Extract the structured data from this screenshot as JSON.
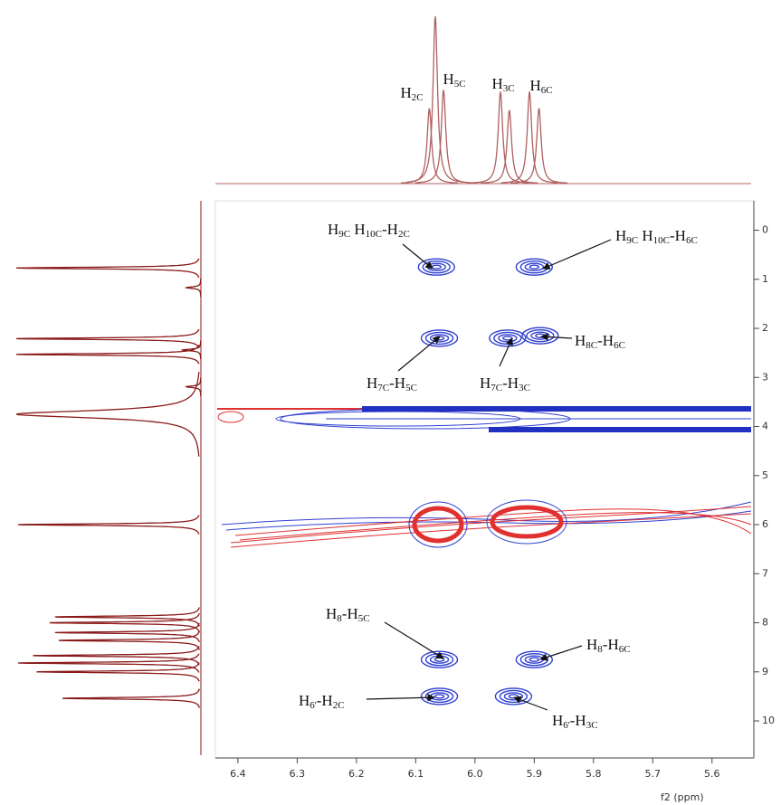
{
  "chart_data": {
    "type": "contour",
    "x_label": "f2 (ppm)",
    "xlim": [
      6.438,
      5.534
    ],
    "xticks": [
      6.4,
      6.3,
      6.2,
      6.1,
      {
        "value": 6,
        "label": "6.0"
      },
      5.9,
      5.8,
      5.7,
      5.6
    ],
    "ylim": [
      -0.6,
      10.7
    ],
    "yticks": [
      0,
      1,
      2,
      3,
      4,
      5,
      6,
      7,
      8,
      9,
      10
    ],
    "cross_peak_color": "#3040d0",
    "cross_peaks": {
      "x": [
        6.065,
        5.9,
        6.06,
        5.945,
        5.89,
        6.06,
        5.9,
        6.06,
        5.935
      ],
      "y": [
        0.75,
        0.75,
        2.2,
        2.2,
        2.15,
        8.75,
        8.75,
        9.5,
        9.5
      ]
    },
    "top_spectrum": {
      "color": "#b06060",
      "x": [
        6.077,
        6.067,
        6.053,
        5.957,
        5.942,
        5.908,
        5.892
      ],
      "values": [
        0.45,
        1.0,
        0.56,
        0.55,
        0.44,
        0.55,
        0.45
      ]
    },
    "left_spectrum": {
      "color": "#8a1a1a",
      "x": [
        0.77,
        1.17,
        2.21,
        2.44,
        2.53,
        3.19,
        3.75,
        6.0,
        7.88,
        8.0,
        8.2,
        8.36,
        8.67,
        8.82,
        9.0,
        9.54
      ],
      "values": [
        1.0,
        0.08,
        1.0,
        0.1,
        1.0,
        0.08,
        1.0,
        0.99,
        0.79,
        0.82,
        0.79,
        0.77,
        0.91,
        0.99,
        0.89,
        0.75
      ]
    },
    "peak_labels": [
      {
        "segments": [
          {
            "t": "H"
          },
          {
            "s": "2C"
          }
        ]
      },
      {
        "segments": [
          {
            "t": "H"
          },
          {
            "s": "5C"
          }
        ]
      },
      {
        "segments": [
          {
            "t": "H"
          },
          {
            "s": "3C"
          }
        ]
      },
      {
        "segments": [
          {
            "t": "H"
          },
          {
            "s": "6C"
          }
        ]
      }
    ],
    "annotations": [
      {
        "segments": [
          {
            "t": "H"
          },
          {
            "s": "9C"
          },
          {
            "t": " H"
          },
          {
            "s": "10C"
          },
          {
            "t": "-H"
          },
          {
            "s": "2C"
          }
        ]
      },
      {
        "segments": [
          {
            "t": "H"
          },
          {
            "s": "9C"
          },
          {
            "t": " H"
          },
          {
            "s": "10C"
          },
          {
            "t": "-H"
          },
          {
            "s": "6C"
          }
        ]
      },
      {
        "segments": [
          {
            "t": "H"
          },
          {
            "s": "7C"
          },
          {
            "t": "-H"
          },
          {
            "s": "5C"
          }
        ]
      },
      {
        "segments": [
          {
            "t": "H"
          },
          {
            "s": "7C"
          },
          {
            "t": "-H"
          },
          {
            "s": "3C"
          }
        ]
      },
      {
        "segments": [
          {
            "t": "H"
          },
          {
            "s": "8C"
          },
          {
            "t": "-H"
          },
          {
            "s": "6C"
          }
        ]
      },
      {
        "segments": [
          {
            "t": "H"
          },
          {
            "s": "8"
          },
          {
            "t": "-H"
          },
          {
            "s": "5C"
          }
        ]
      },
      {
        "segments": [
          {
            "t": "H"
          },
          {
            "s": "8"
          },
          {
            "t": "-H"
          },
          {
            "s": "6C"
          }
        ]
      },
      {
        "segments": [
          {
            "t": "H"
          },
          {
            "s": "6'"
          },
          {
            "t": "-H"
          },
          {
            "s": "2C"
          }
        ]
      },
      {
        "segments": [
          {
            "t": "H"
          },
          {
            "s": "6'"
          },
          {
            "t": "-H"
          },
          {
            "s": "3C"
          }
        ]
      }
    ]
  }
}
